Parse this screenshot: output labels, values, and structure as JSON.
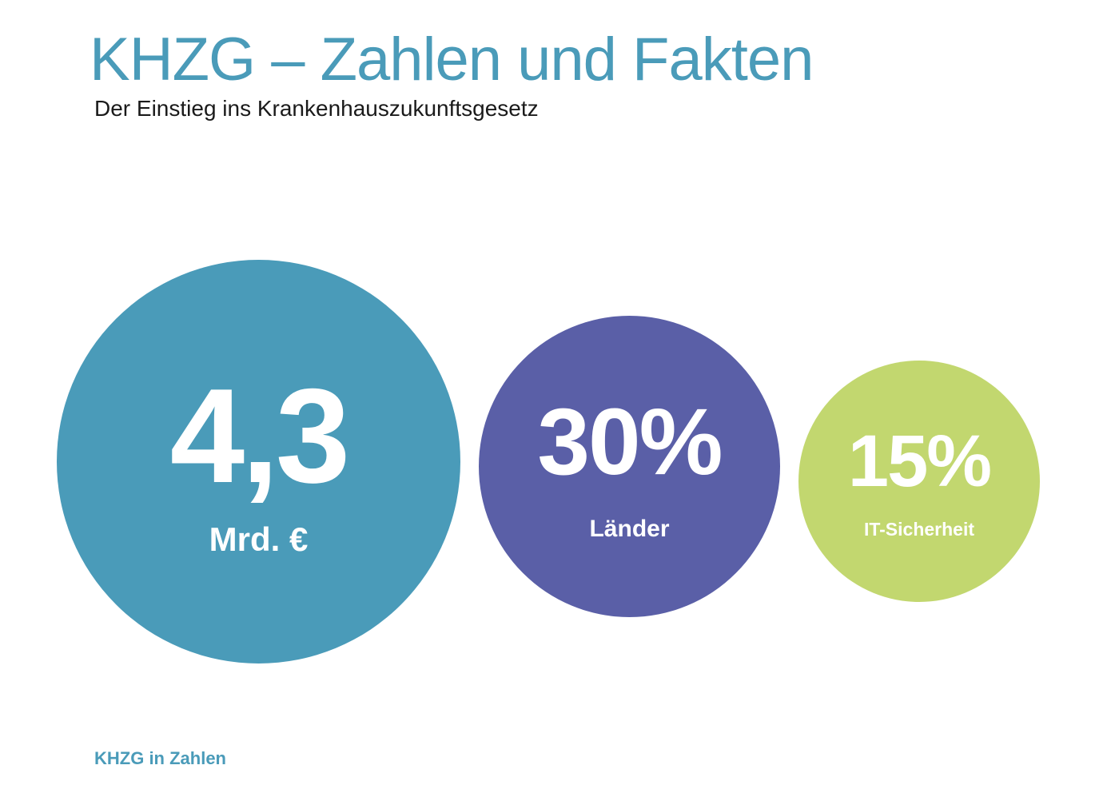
{
  "header": {
    "title": "KHZG – Zahlen und Fakten",
    "subtitle": "Der Einstieg ins Krankenhauszukunftsgesetz"
  },
  "stats": [
    {
      "value": "4,3",
      "label": "Mrd. €",
      "color": "#4a9bb9"
    },
    {
      "value": "30%",
      "label": "Länder",
      "color": "#5a5fa7"
    },
    {
      "value": "15%",
      "label": "IT-Sicherheit",
      "color": "#c2d76f"
    }
  ],
  "footer": {
    "label": "KHZG in Zahlen"
  }
}
